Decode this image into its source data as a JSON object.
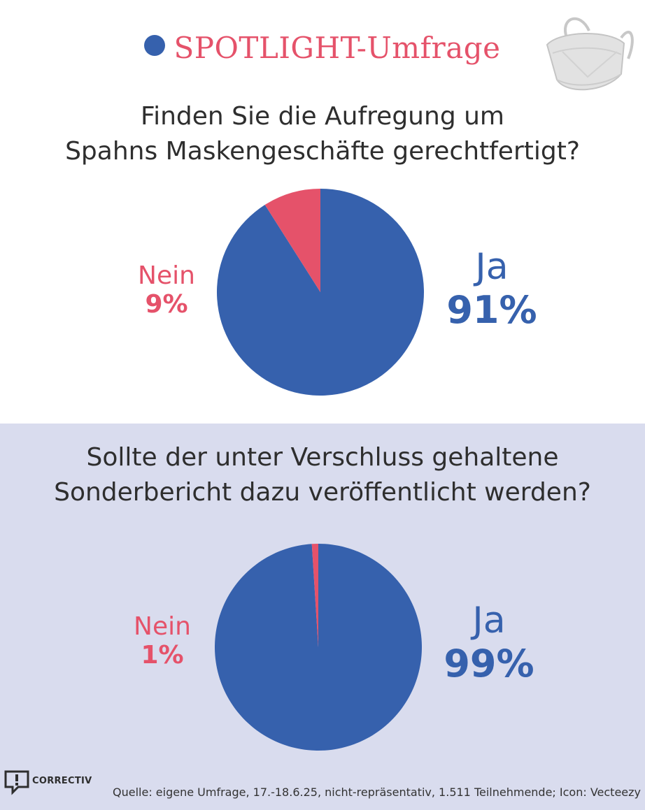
{
  "header": {
    "title": "SPOTLIGHT-Umfrage",
    "dot_color": "#3661ad",
    "title_color": "#e5526a",
    "icon": "mask-icon"
  },
  "colors": {
    "ja": "#3661ad",
    "nein": "#e5526a",
    "bottom_bg": "#d9dcee"
  },
  "chart_data": [
    {
      "type": "pie",
      "title": "Finden Sie die Aufregung um Spahns Maskengeschäfte gerechtfertigt?",
      "title_lines": [
        "Finden Sie die Aufregung um",
        "Spahns Maskengeschäfte gerechtfertigt?"
      ],
      "categories": [
        "Ja",
        "Nein"
      ],
      "values": [
        91,
        9
      ],
      "value_labels": [
        "91%",
        "9%"
      ]
    },
    {
      "type": "pie",
      "title": "Sollte der unter Verschluss gehaltene Sonderbericht dazu veröffentlicht werden?",
      "title_lines": [
        "Sollte der unter Verschluss gehaltene",
        "Sonderbericht dazu veröffentlicht werden?"
      ],
      "categories": [
        "Ja",
        "Nein"
      ],
      "values": [
        99,
        1
      ],
      "value_labels": [
        "99%",
        "1%"
      ]
    }
  ],
  "footer": {
    "logo": "CORRECTIV",
    "source": "Quelle: eigene Umfrage, 17.-18.6.25, nicht-repräsentativ, 1.511 Teilnehmende; Icon: Vecteezy"
  }
}
